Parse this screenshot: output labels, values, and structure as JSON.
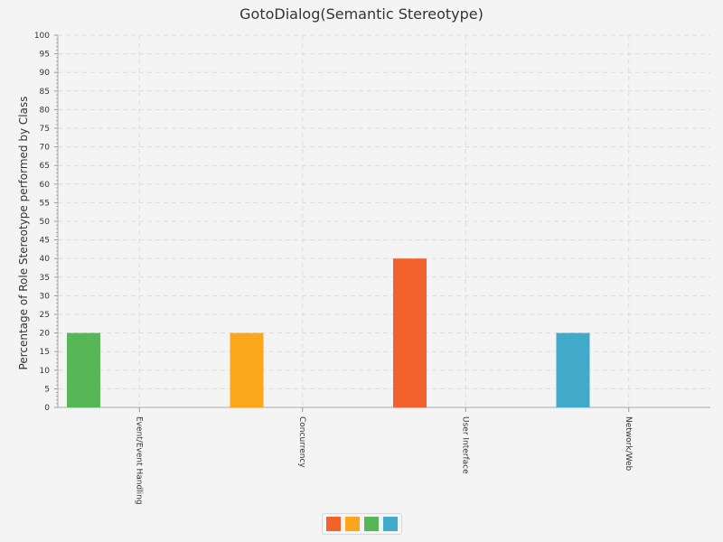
{
  "chart_data": {
    "type": "bar",
    "title": "GotoDialog(Semantic Stereotype)",
    "xlabel": "",
    "ylabel": "Percentage of Role Stereotype performed by Class",
    "ylim": [
      0,
      100
    ],
    "ytick_step": 5,
    "grid": true,
    "legend_position": "bottom",
    "categories": [
      "Event/Event Handling",
      "Concurrency",
      "User Interface",
      "Network/Web"
    ],
    "series": [
      {
        "color": "#f3622d",
        "values": [
          0,
          0,
          40,
          0
        ]
      },
      {
        "color": "#fba71b",
        "values": [
          0,
          20,
          0,
          0
        ]
      },
      {
        "color": "#57b757",
        "values": [
          20,
          0,
          0,
          0
        ]
      },
      {
        "color": "#41a9c9",
        "values": [
          0,
          0,
          0,
          20
        ]
      }
    ]
  }
}
